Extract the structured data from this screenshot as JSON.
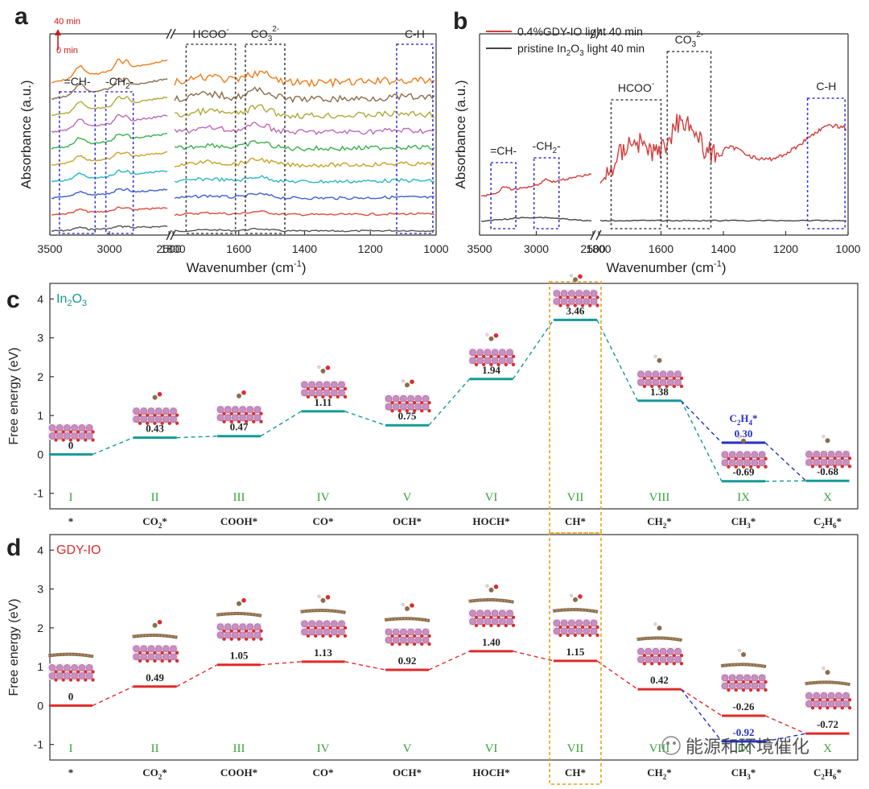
{
  "panel_labels": {
    "a": "a",
    "b": "b",
    "c": "c",
    "d": "d"
  },
  "watermark": "能源和环境催化",
  "chart_data": [
    {
      "panel": "a",
      "type": "line",
      "ylabel": "Absorbance (a.u.)",
      "xlabel": "Wavenumber (cm",
      "xlabel_sup": "-1",
      "xlabel_end": ")",
      "x_axis_left": {
        "range": [
          3500,
          2500
        ],
        "ticks": [
          "3500",
          "3000",
          "2500"
        ]
      },
      "x_axis_right": {
        "range": [
          1800,
          1000
        ],
        "ticks": [
          "1800",
          "1600",
          "1400",
          "1200",
          "1000"
        ]
      },
      "time_arrow": {
        "top": "40 min",
        "bottom": "0 min"
      },
      "annotations": [
        {
          "text": "=CH-",
          "range": [
            3420,
            3120
          ]
        },
        {
          "text": "-CH",
          "sub": "2",
          "end": "-",
          "range": [
            3030,
            2800
          ]
        },
        {
          "text": "HCOO",
          "sup": "-",
          "range": [
            1760,
            1610
          ]
        },
        {
          "text": "CO",
          "sub": "3",
          "sup": "2-",
          "range": [
            1580,
            1460
          ]
        },
        {
          "text": "C-H",
          "range": [
            1120,
            1010
          ]
        }
      ],
      "series": [
        {
          "color": "#555555",
          "offset": 0
        },
        {
          "color": "#e04b3d",
          "offset": 1
        },
        {
          "color": "#3f5fd0",
          "offset": 2
        },
        {
          "color": "#28b8c2",
          "offset": 3
        },
        {
          "color": "#c9a227",
          "offset": 4
        },
        {
          "color": "#3ab04e",
          "offset": 5
        },
        {
          "color": "#c068b9",
          "offset": 6
        },
        {
          "color": "#b0a93a",
          "offset": 7
        },
        {
          "color": "#8a6d4a",
          "offset": 8
        },
        {
          "color": "#f07c1a",
          "offset": 9
        }
      ]
    },
    {
      "panel": "b",
      "type": "line",
      "ylabel": "Absorbance (a.u.)",
      "xlabel": "Wavenumber (cm",
      "xlabel_sup": "-1",
      "xlabel_end": ")",
      "x_axis_left": {
        "range": [
          3500,
          2500
        ],
        "ticks": [
          "3500",
          "3000",
          "2500"
        ]
      },
      "x_axis_right": {
        "range": [
          1800,
          1000
        ],
        "ticks": [
          "1800",
          "1600",
          "1400",
          "1200",
          "1000"
        ]
      },
      "legend": [
        {
          "name": "0.4%GDY-IO light 40 min",
          "color": "#d43c3c"
        },
        {
          "name_a": "pristine  In",
          "sub": "2",
          "name_b": "O",
          "sub2": "3",
          "name_c": "  light 40 min",
          "color": "#444444"
        }
      ],
      "annotations": [
        {
          "text": "=CH-",
          "range": [
            3400,
            3180
          ]
        },
        {
          "text": "-CH",
          "sub": "2",
          "end": "-",
          "range": [
            3020,
            2800
          ]
        },
        {
          "text": "HCOO",
          "sup": "-",
          "range": [
            1760,
            1600
          ]
        },
        {
          "text": "CO",
          "sub": "3",
          "sup": "2-",
          "range": [
            1580,
            1440
          ]
        },
        {
          "text": "C-H",
          "range": [
            1130,
            1010
          ]
        }
      ]
    },
    {
      "panel": "c",
      "type": "energy-diagram",
      "title": "In",
      "title_sub": "2",
      "title_b": "O",
      "title_sub2": "3",
      "ylabel": "Free energy (eV)",
      "ylim": [
        -1.4,
        4.4
      ],
      "yticks": [
        "-1",
        "0",
        "1",
        "2",
        "3",
        "4"
      ],
      "accent": "#159a96",
      "line_color": "#159a96",
      "highlight_step": "VII",
      "steps": [
        {
          "roman": "I",
          "species": "*",
          "energy": 0,
          "label": "0"
        },
        {
          "roman": "II",
          "species": "CO",
          "species_sub": "2",
          "species_end": "*",
          "energy": 0.43,
          "label": "0.43"
        },
        {
          "roman": "III",
          "species": "COOH*",
          "energy": 0.47,
          "label": "0.47"
        },
        {
          "roman": "IV",
          "species": "CO*",
          "energy": 1.11,
          "label": "1.11"
        },
        {
          "roman": "V",
          "species": "OCH*",
          "energy": 0.75,
          "label": "0.75"
        },
        {
          "roman": "VI",
          "species": "HOCH*",
          "energy": 1.94,
          "label": "1.94"
        },
        {
          "roman": "VII",
          "species": "CH*",
          "energy": 3.46,
          "label": "3.46"
        },
        {
          "roman": "VIII",
          "species": "CH",
          "species_sub": "2",
          "species_end": "*",
          "energy": 1.38,
          "label": "1.38"
        },
        {
          "roman": "IX",
          "species": "CH",
          "species_sub": "3",
          "species_end": "*",
          "energy": -0.69,
          "label": "-0.69"
        },
        {
          "roman": "X",
          "species": "C",
          "species_sub": "2",
          "species_mid": "H",
          "species_sub2": "6",
          "species_end": "*",
          "energy": -0.68,
          "label": "-0.68"
        }
      ],
      "branch": {
        "step": "IX",
        "energy": 0.3,
        "label": "0.30",
        "species": "C",
        "species_sub": "2",
        "species_mid": "H",
        "species_sub2": "4",
        "species_end": "*",
        "color": "#2530c8"
      }
    },
    {
      "panel": "d",
      "type": "energy-diagram",
      "title": "GDY-IO",
      "ylabel": "Free energy (eV)",
      "ylim": [
        -1.4,
        4.4
      ],
      "yticks": [
        "-1",
        "0",
        "1",
        "2",
        "3",
        "4"
      ],
      "accent": "#e02a2a",
      "line_color": "#e02a2a",
      "highlight_step": "VII",
      "steps": [
        {
          "roman": "I",
          "species": "*",
          "energy": 0,
          "label": "0"
        },
        {
          "roman": "II",
          "species": "CO",
          "species_sub": "2",
          "species_end": "*",
          "energy": 0.49,
          "label": "0.49"
        },
        {
          "roman": "III",
          "species": "COOH*",
          "energy": 1.05,
          "label": "1.05"
        },
        {
          "roman": "IV",
          "species": "CO*",
          "energy": 1.13,
          "label": "1.13"
        },
        {
          "roman": "V",
          "species": "OCH*",
          "energy": 0.92,
          "label": "0.92"
        },
        {
          "roman": "VI",
          "species": "HOCH*",
          "energy": 1.4,
          "label": "1.40"
        },
        {
          "roman": "VII",
          "species": "CH*",
          "energy": 1.15,
          "label": "1.15"
        },
        {
          "roman": "VIII",
          "species": "CH",
          "species_sub": "2",
          "species_end": "*",
          "energy": 0.42,
          "label": "0.42"
        },
        {
          "roman": "IX",
          "species": "CH",
          "species_sub": "3",
          "species_end": "*",
          "energy": -0.26,
          "label": "-0.26"
        },
        {
          "roman": "X",
          "species": "C",
          "species_sub": "2",
          "species_mid": "H",
          "species_sub2": "6",
          "species_end": "*",
          "energy": -0.72,
          "label": "-0.72"
        }
      ],
      "branch": {
        "step": "IX",
        "energy": -0.92,
        "label": "-0.92",
        "color": "#2530c8"
      }
    }
  ]
}
